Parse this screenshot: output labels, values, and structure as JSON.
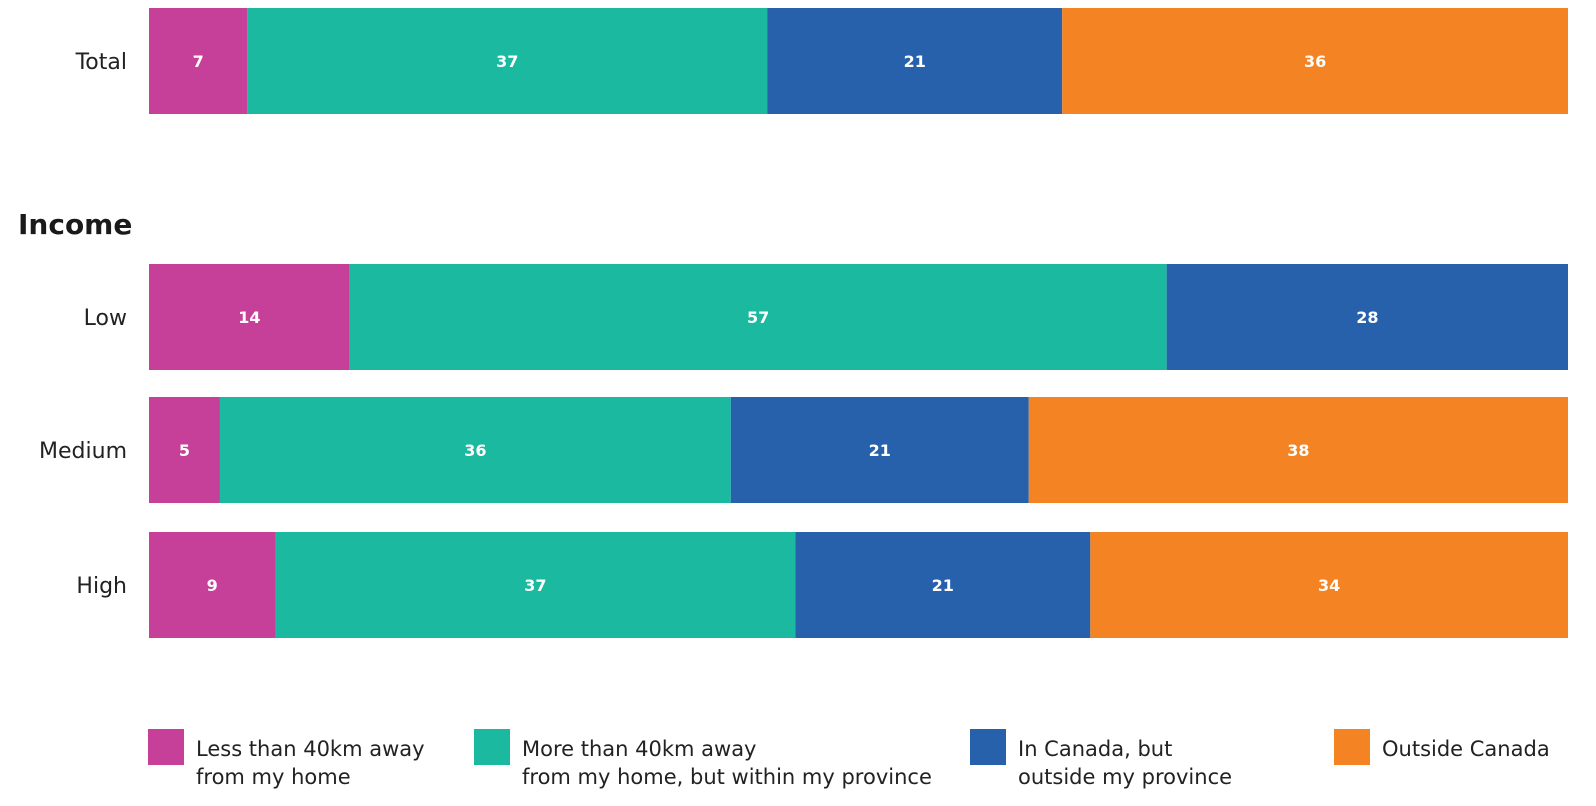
{
  "chart_data": {
    "type": "bar",
    "orientation": "horizontal",
    "stacked": true,
    "xlim": [
      0,
      100
    ],
    "series": [
      {
        "name": "Less than 40km away from my home",
        "legend_lines": [
          "Less than 40km away",
          "from my home"
        ],
        "color": "#c6409a"
      },
      {
        "name": "More than 40km away from my home, but within my province",
        "legend_lines": [
          "More than 40km away",
          "from my home, but within my province"
        ],
        "color": "#1bb99f"
      },
      {
        "name": "In Canada, but outside my province",
        "legend_lines": [
          "In Canada, but",
          "outside my province"
        ],
        "color": "#2760ab"
      },
      {
        "name": "Outside Canada",
        "legend_lines": [
          "Outside Canada"
        ],
        "color": "#f48423"
      }
    ],
    "groups": [
      {
        "heading": "",
        "rows": [
          {
            "label": "Total",
            "values": [
              7,
              37,
              21,
              36
            ]
          }
        ]
      },
      {
        "heading": "Income",
        "rows": [
          {
            "label": "Low",
            "values": [
              14,
              57,
              28,
              0
            ]
          },
          {
            "label": "Medium",
            "values": [
              5,
              36,
              21,
              38
            ]
          },
          {
            "label": "High",
            "values": [
              9,
              37,
              21,
              34
            ]
          }
        ]
      }
    ],
    "legend_position": "bottom",
    "grid": false
  }
}
